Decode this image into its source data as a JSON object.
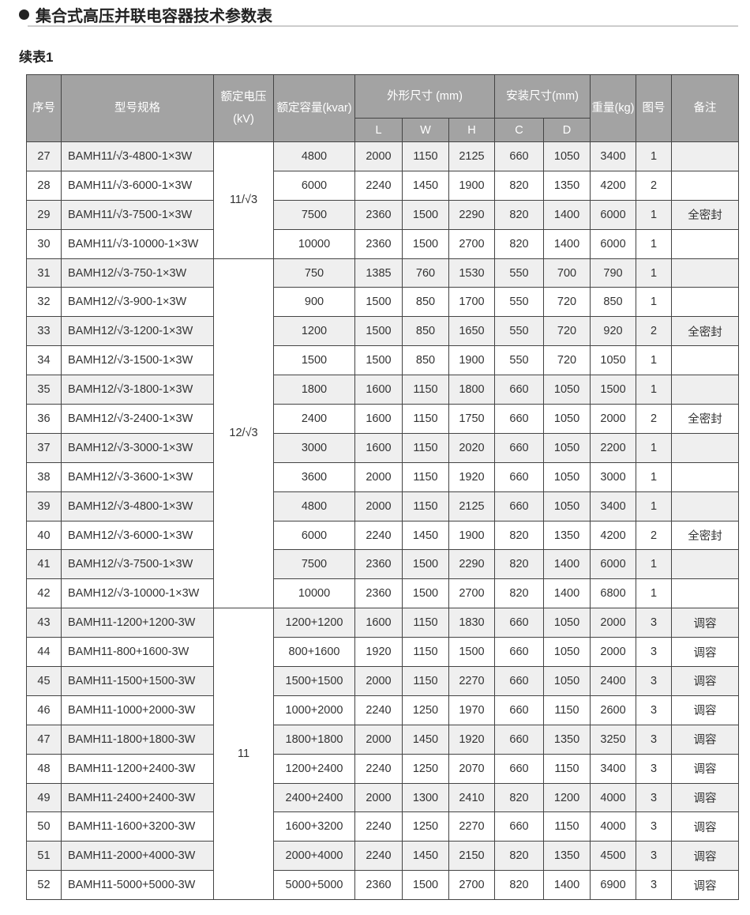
{
  "title": "集合式高压并联电容器技术参数表",
  "subtitle": "续表1",
  "headers": {
    "no": "序号",
    "model": "型号规格",
    "voltage": "额定电压(kV)",
    "capacity": "额定容量(kvar)",
    "outline": "外形尺寸 (mm)",
    "L": "L",
    "W": "W",
    "H": "H",
    "install": "安装尺寸(mm)",
    "C": "C",
    "D": "D",
    "weight": "重量(kg)",
    "fig": "图号",
    "note": "备注"
  },
  "voltage_groups": [
    {
      "label": "11/√3",
      "rows": 4
    },
    {
      "label": "12/√3",
      "rows": 12
    },
    {
      "label": "11",
      "rows": 10
    }
  ],
  "rows": [
    [
      "27",
      "BAMH11/√3-4800-1×3W",
      "4800",
      "2000",
      "1150",
      "2125",
      "660",
      "1050",
      "3400",
      "1",
      ""
    ],
    [
      "28",
      "BAMH11/√3-6000-1×3W",
      "6000",
      "2240",
      "1450",
      "1900",
      "820",
      "1350",
      "4200",
      "2",
      ""
    ],
    [
      "29",
      "BAMH11/√3-7500-1×3W",
      "7500",
      "2360",
      "1500",
      "2290",
      "820",
      "1400",
      "6000",
      "1",
      "全密封"
    ],
    [
      "30",
      "BAMH11/√3-10000-1×3W",
      "10000",
      "2360",
      "1500",
      "2700",
      "820",
      "1400",
      "6000",
      "1",
      ""
    ],
    [
      "31",
      "BAMH12/√3-750-1×3W",
      "750",
      "1385",
      "760",
      "1530",
      "550",
      "700",
      "790",
      "1",
      ""
    ],
    [
      "32",
      "BAMH12/√3-900-1×3W",
      "900",
      "1500",
      "850",
      "1700",
      "550",
      "720",
      "850",
      "1",
      ""
    ],
    [
      "33",
      "BAMH12/√3-1200-1×3W",
      "1200",
      "1500",
      "850",
      "1650",
      "550",
      "720",
      "920",
      "2",
      "全密封"
    ],
    [
      "34",
      "BAMH12/√3-1500-1×3W",
      "1500",
      "1500",
      "850",
      "1900",
      "550",
      "720",
      "1050",
      "1",
      ""
    ],
    [
      "35",
      "BAMH12/√3-1800-1×3W",
      "1800",
      "1600",
      "1150",
      "1800",
      "660",
      "1050",
      "1500",
      "1",
      ""
    ],
    [
      "36",
      "BAMH12/√3-2400-1×3W",
      "2400",
      "1600",
      "1150",
      "1750",
      "660",
      "1050",
      "2000",
      "2",
      "全密封"
    ],
    [
      "37",
      "BAMH12/√3-3000-1×3W",
      "3000",
      "1600",
      "1150",
      "2020",
      "660",
      "1050",
      "2200",
      "1",
      ""
    ],
    [
      "38",
      "BAMH12/√3-3600-1×3W",
      "3600",
      "2000",
      "1150",
      "1920",
      "660",
      "1050",
      "3000",
      "1",
      ""
    ],
    [
      "39",
      "BAMH12/√3-4800-1×3W",
      "4800",
      "2000",
      "1150",
      "2125",
      "660",
      "1050",
      "3400",
      "1",
      ""
    ],
    [
      "40",
      "BAMH12/√3-6000-1×3W",
      "6000",
      "2240",
      "1450",
      "1900",
      "820",
      "1350",
      "4200",
      "2",
      "全密封"
    ],
    [
      "41",
      "BAMH12/√3-7500-1×3W",
      "7500",
      "2360",
      "1500",
      "2290",
      "820",
      "1400",
      "6000",
      "1",
      ""
    ],
    [
      "42",
      "BAMH12/√3-10000-1×3W",
      "10000",
      "2360",
      "1500",
      "2700",
      "820",
      "1400",
      "6800",
      "1",
      ""
    ],
    [
      "43",
      "BAMH11-1200+1200-3W",
      "1200+1200",
      "1600",
      "1150",
      "1830",
      "660",
      "1050",
      "2000",
      "3",
      "调容"
    ],
    [
      "44",
      "BAMH11-800+1600-3W",
      "800+1600",
      "1920",
      "1150",
      "1500",
      "660",
      "1050",
      "2000",
      "3",
      "调容"
    ],
    [
      "45",
      "BAMH11-1500+1500-3W",
      "1500+1500",
      "2000",
      "1150",
      "2270",
      "660",
      "1050",
      "2400",
      "3",
      "调容"
    ],
    [
      "46",
      "BAMH11-1000+2000-3W",
      "1000+2000",
      "2240",
      "1250",
      "1970",
      "660",
      "1150",
      "2600",
      "3",
      "调容"
    ],
    [
      "47",
      "BAMH11-1800+1800-3W",
      "1800+1800",
      "2000",
      "1450",
      "1920",
      "660",
      "1350",
      "3250",
      "3",
      "调容"
    ],
    [
      "48",
      "BAMH11-1200+2400-3W",
      "1200+2400",
      "2240",
      "1250",
      "2070",
      "660",
      "1150",
      "3400",
      "3",
      "调容"
    ],
    [
      "49",
      "BAMH11-2400+2400-3W",
      "2400+2400",
      "2000",
      "1300",
      "2410",
      "820",
      "1200",
      "4000",
      "3",
      "调容"
    ],
    [
      "50",
      "BAMH11-1600+3200-3W",
      "1600+3200",
      "2240",
      "1250",
      "2270",
      "660",
      "1150",
      "4000",
      "3",
      "调容"
    ],
    [
      "51",
      "BAMH11-2000+4000-3W",
      "2000+4000",
      "2240",
      "1450",
      "2150",
      "820",
      "1350",
      "4500",
      "3",
      "调容"
    ],
    [
      "52",
      "BAMH11-5000+5000-3W",
      "5000+5000",
      "2360",
      "1500",
      "2700",
      "820",
      "1400",
      "6900",
      "3",
      "调容"
    ]
  ]
}
